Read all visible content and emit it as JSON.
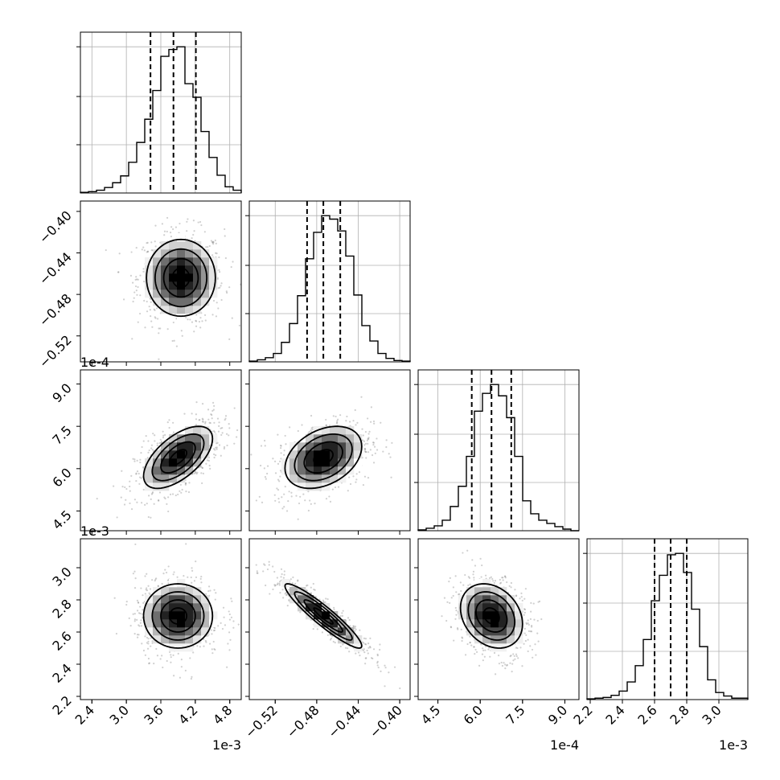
{
  "chart_data": {
    "type": "corner",
    "grid": true,
    "parameters": [
      {
        "range": [
          2.2,
          5.0
        ],
        "offset_text": "1e-3",
        "ticks": [
          2.4,
          3.0,
          3.6,
          4.2,
          4.8
        ],
        "tick_labels": [
          "2.4",
          "3.0",
          "3.6",
          "4.2",
          "4.8"
        ],
        "quantiles": [
          3.42,
          3.82,
          4.21
        ],
        "hist_edges": [
          2.2,
          2.34,
          2.48,
          2.62,
          2.76,
          2.9,
          3.04,
          3.18,
          3.32,
          3.46,
          3.6,
          3.74,
          3.88,
          4.02,
          4.16,
          4.3,
          4.44,
          4.58,
          4.72,
          4.86,
          5.0
        ],
        "hist_counts": [
          1,
          2,
          4,
          8,
          15,
          25,
          45,
          74,
          108,
          150,
          200,
          210,
          214,
          160,
          140,
          90,
          52,
          26,
          9,
          4
        ]
      },
      {
        "range": [
          -0.545,
          -0.39
        ],
        "offset_text": "",
        "ticks": [
          -0.52,
          -0.48,
          -0.44,
          -0.4
        ],
        "tick_labels": [
          "−0.52",
          "−0.48",
          "−0.44",
          "−0.40"
        ],
        "quantiles": [
          -0.4893,
          -0.4736,
          -0.4573
        ],
        "hist_edges": [
          -0.545,
          -0.53725,
          -0.5295,
          -0.52175,
          -0.514,
          -0.50625,
          -0.4985,
          -0.49075,
          -0.483,
          -0.47525,
          -0.4675,
          -0.45975,
          -0.452,
          -0.44425,
          -0.4365,
          -0.42875,
          -0.421,
          -0.41325,
          -0.4055,
          -0.39775,
          -0.39
        ],
        "hist_counts": [
          1,
          3,
          6,
          12,
          28,
          55,
          95,
          148,
          186,
          210,
          205,
          188,
          152,
          96,
          52,
          30,
          12,
          5,
          2,
          1
        ]
      },
      {
        "range": [
          3.8,
          9.5
        ],
        "offset_text": "1e-4",
        "ticks": [
          4.5,
          6.0,
          7.5,
          9.0
        ],
        "tick_labels": [
          "4.5",
          "6.0",
          "7.5",
          "9.0"
        ],
        "quantiles": [
          5.7,
          6.4,
          7.1
        ],
        "hist_edges": [
          3.8,
          4.085,
          4.37,
          4.655,
          4.94,
          5.225,
          5.51,
          5.795,
          6.08,
          6.365,
          6.65,
          6.935,
          7.22,
          7.505,
          7.79,
          8.075,
          8.36,
          8.645,
          8.93,
          9.215,
          9.5
        ],
        "hist_counts": [
          1,
          3,
          6,
          13,
          30,
          55,
          92,
          148,
          170,
          181,
          167,
          140,
          92,
          37,
          21,
          13,
          9,
          5,
          2,
          0
        ]
      },
      {
        "range": [
          2.18,
          3.18
        ],
        "offset_text": "1e-3",
        "ticks": [
          2.2,
          2.4,
          2.6,
          2.8,
          3.0
        ],
        "tick_labels": [
          "2.2",
          "2.4",
          "2.6",
          "2.8",
          "3.0"
        ],
        "quantiles": [
          2.6,
          2.7,
          2.8
        ],
        "hist_edges": [
          2.18,
          2.23,
          2.28,
          2.33,
          2.38,
          2.43,
          2.48,
          2.53,
          2.58,
          2.63,
          2.68,
          2.73,
          2.78,
          2.83,
          2.88,
          2.93,
          2.98,
          3.03,
          3.08,
          3.13,
          3.18
        ],
        "hist_counts": [
          1,
          2,
          3,
          6,
          12,
          25,
          48,
          85,
          140,
          176,
          205,
          207,
          180,
          128,
          75,
          28,
          10,
          5,
          2,
          2
        ]
      }
    ],
    "pairs": [
      {
        "row": 1,
        "col": 0,
        "center": [
          3.95,
          -0.464
        ],
        "sigma": [
          0.3,
          0.0185
        ],
        "corr": 0.0
      },
      {
        "row": 2,
        "col": 0,
        "center": [
          3.9,
          6.4
        ],
        "sigma": [
          0.3,
          0.55
        ],
        "corr": 0.6
      },
      {
        "row": 2,
        "col": 1,
        "center": [
          -0.4736,
          6.4
        ],
        "sigma": [
          0.0185,
          0.55
        ],
        "corr": 0.35
      },
      {
        "row": 3,
        "col": 0,
        "center": [
          3.9,
          2.7
        ],
        "sigma": [
          0.3,
          0.1
        ],
        "corr": 0.0
      },
      {
        "row": 3,
        "col": 1,
        "center": [
          -0.4736,
          2.7
        ],
        "sigma": [
          0.0185,
          0.1
        ],
        "corr": -0.93
      },
      {
        "row": 3,
        "col": 2,
        "center": [
          6.4,
          2.7
        ],
        "sigma": [
          0.55,
          0.1
        ],
        "corr": -0.25
      }
    ]
  }
}
